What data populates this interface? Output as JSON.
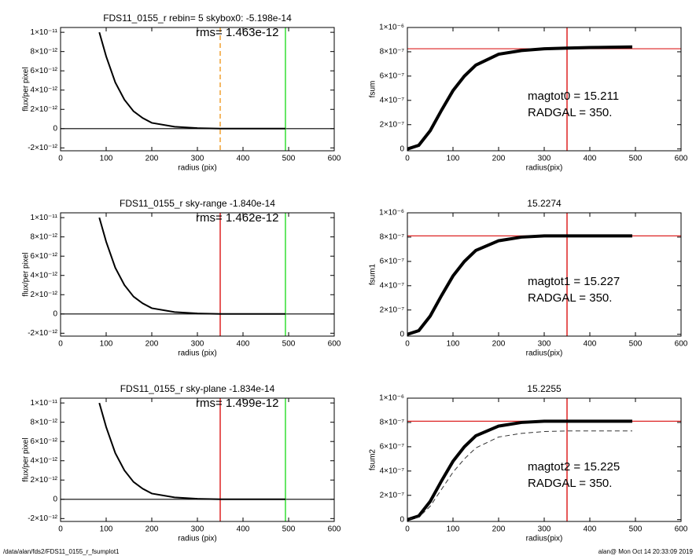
{
  "chart_data": [
    {
      "type": "line",
      "title": "FDS11_0155_r rebin= 5    skybox0: -5.198e-14",
      "annotations": [
        "rms= 1.463e-12"
      ],
      "xlabel": "radius (pix)",
      "ylabel": "flux/per pixel",
      "xlim": [
        0,
        600
      ],
      "ylim": [
        -2.3e-12,
        1.05e-11
      ],
      "xticks": [
        0,
        100,
        200,
        300,
        400,
        500,
        600
      ],
      "yticks": [
        {
          "value": -2e-12,
          "label": "-2×10⁻¹²"
        },
        0,
        {
          "value": 2e-12,
          "label": "2×10⁻¹²"
        },
        {
          "value": 4e-12,
          "label": "4×10⁻¹²"
        },
        {
          "value": 6e-12,
          "label": "6×10⁻¹²"
        },
        {
          "value": 8e-12,
          "label": "8×10⁻¹²"
        },
        {
          "value": 1e-11,
          "label": "1×10⁻¹¹"
        }
      ],
      "hlines": [
        {
          "value": 0,
          "color": "#000000"
        }
      ],
      "vlines": [
        {
          "value": 350,
          "color": "#f0a030",
          "dash": true
        },
        {
          "value": 493,
          "color": "#33dd33",
          "dash": false
        }
      ],
      "series": [
        {
          "color": "#000000",
          "x": [
            85,
            100,
            120,
            140,
            160,
            180,
            200,
            250,
            300,
            350,
            400,
            493
          ],
          "values": [
            1e-11,
            7.5e-12,
            4.8e-12,
            3e-12,
            1.8e-12,
            1.1e-12,
            6e-13,
            2e-13,
            5e-14,
            0,
            0,
            0
          ],
          "dash": false
        }
      ]
    },
    {
      "type": "line",
      "title": "",
      "annotations": [
        "magtot0 =  15.211",
        "RADGAL =    350."
      ],
      "xlabel": "radius(pix)",
      "ylabel": "fsum",
      "xlim": [
        0,
        600
      ],
      "ylim": [
        -1.5e-08,
        1e-06
      ],
      "xticks": [
        0,
        100,
        200,
        300,
        400,
        500,
        600
      ],
      "yticks": [
        0,
        {
          "value": 2e-07,
          "label": "2×10⁻⁷"
        },
        {
          "value": 4e-07,
          "label": "4×10⁻⁷"
        },
        {
          "value": 6e-07,
          "label": "6×10⁻⁷"
        },
        {
          "value": 8e-07,
          "label": "8×10⁻⁷"
        },
        {
          "value": 1e-06,
          "label": "1×10⁻⁶"
        }
      ],
      "hlines": [
        {
          "value": 8.25e-07,
          "color": "#dd2222"
        }
      ],
      "vlines": [
        {
          "value": 350,
          "color": "#dd2222",
          "dash": false
        }
      ],
      "series": [
        {
          "color": "#000000",
          "x": [
            0,
            25,
            50,
            75,
            100,
            125,
            150,
            200,
            250,
            300,
            350,
            400,
            493
          ],
          "values": [
            0,
            3e-08,
            1.5e-07,
            3.2e-07,
            4.8e-07,
            6e-07,
            6.9e-07,
            7.8e-07,
            8.1e-07,
            8.25e-07,
            8.3e-07,
            8.35e-07,
            8.4e-07
          ],
          "dash": false
        }
      ]
    },
    {
      "type": "line",
      "title": "FDS11_0155_r sky-range -1.840e-14",
      "annotations": [
        "rms= 1.462e-12"
      ],
      "xlabel": "radius (pix)",
      "ylabel": "flux/per pixel",
      "xlim": [
        0,
        600
      ],
      "ylim": [
        -2.3e-12,
        1.05e-11
      ],
      "xticks": [
        0,
        100,
        200,
        300,
        400,
        500,
        600
      ],
      "yticks": [
        {
          "value": -2e-12,
          "label": "-2×10⁻¹²"
        },
        0,
        {
          "value": 2e-12,
          "label": "2×10⁻¹²"
        },
        {
          "value": 4e-12,
          "label": "4×10⁻¹²"
        },
        {
          "value": 6e-12,
          "label": "6×10⁻¹²"
        },
        {
          "value": 8e-12,
          "label": "8×10⁻¹²"
        },
        {
          "value": 1e-11,
          "label": "1×10⁻¹¹"
        }
      ],
      "hlines": [
        {
          "value": 0,
          "color": "#000000"
        }
      ],
      "vlines": [
        {
          "value": 350,
          "color": "#dd2222",
          "dash": false
        },
        {
          "value": 493,
          "color": "#33dd33",
          "dash": false
        }
      ],
      "series": [
        {
          "color": "#000000",
          "x": [
            85,
            100,
            120,
            140,
            160,
            180,
            200,
            250,
            300,
            350,
            400,
            493
          ],
          "values": [
            1e-11,
            7.5e-12,
            4.8e-12,
            3e-12,
            1.8e-12,
            1.1e-12,
            6e-13,
            2e-13,
            5e-14,
            0,
            0,
            0
          ],
          "dash": false
        }
      ]
    },
    {
      "type": "line",
      "title": "15.2274",
      "annotations": [
        "magtot1 =  15.227",
        "RADGAL =    350."
      ],
      "xlabel": "radius(pix)",
      "ylabel": "fsum1",
      "xlim": [
        0,
        600
      ],
      "ylim": [
        -1.5e-08,
        1e-06
      ],
      "xticks": [
        0,
        100,
        200,
        300,
        400,
        500,
        600
      ],
      "yticks": [
        0,
        {
          "value": 2e-07,
          "label": "2×10⁻⁷"
        },
        {
          "value": 4e-07,
          "label": "4×10⁻⁷"
        },
        {
          "value": 6e-07,
          "label": "6×10⁻⁷"
        },
        {
          "value": 8e-07,
          "label": "8×10⁻⁷"
        },
        {
          "value": 1e-06,
          "label": "1×10⁻⁶"
        }
      ],
      "hlines": [
        {
          "value": 8.1e-07,
          "color": "#dd2222"
        }
      ],
      "vlines": [
        {
          "value": 350,
          "color": "#dd2222",
          "dash": false
        }
      ],
      "series": [
        {
          "color": "#000000",
          "x": [
            0,
            25,
            50,
            75,
            100,
            125,
            150,
            200,
            250,
            300,
            350,
            400,
            493
          ],
          "values": [
            0,
            3e-08,
            1.5e-07,
            3.2e-07,
            4.8e-07,
            6e-07,
            6.9e-07,
            7.7e-07,
            8e-07,
            8.1e-07,
            8.1e-07,
            8.1e-07,
            8.1e-07
          ],
          "dash": false
        }
      ]
    },
    {
      "type": "line",
      "title": "FDS11_0155_r sky-plane -1.834e-14",
      "annotations": [
        "rms= 1.499e-12"
      ],
      "xlabel": "radius (pix)",
      "ylabel": "flux/per pixel",
      "xlim": [
        0,
        600
      ],
      "ylim": [
        -2.3e-12,
        1.05e-11
      ],
      "xticks": [
        0,
        100,
        200,
        300,
        400,
        500,
        600
      ],
      "yticks": [
        {
          "value": -2e-12,
          "label": "-2×10⁻¹²"
        },
        0,
        {
          "value": 2e-12,
          "label": "2×10⁻¹²"
        },
        {
          "value": 4e-12,
          "label": "4×10⁻¹²"
        },
        {
          "value": 6e-12,
          "label": "6×10⁻¹²"
        },
        {
          "value": 8e-12,
          "label": "8×10⁻¹²"
        },
        {
          "value": 1e-11,
          "label": "1×10⁻¹¹"
        }
      ],
      "hlines": [
        {
          "value": 0,
          "color": "#000000"
        }
      ],
      "vlines": [
        {
          "value": 350,
          "color": "#dd2222",
          "dash": false
        },
        {
          "value": 493,
          "color": "#33dd33",
          "dash": false
        }
      ],
      "series": [
        {
          "color": "#000000",
          "x": [
            85,
            100,
            120,
            140,
            160,
            180,
            200,
            250,
            300,
            350,
            400,
            493
          ],
          "values": [
            1e-11,
            7.5e-12,
            4.8e-12,
            3e-12,
            1.8e-12,
            1.1e-12,
            6e-13,
            2e-13,
            5e-14,
            0,
            0,
            0
          ],
          "dash": false
        }
      ]
    },
    {
      "type": "line",
      "title": "15.2255",
      "annotations": [
        "magtot2 =  15.225",
        "RADGAL =    350."
      ],
      "xlabel": "radius(pix)",
      "ylabel": "fsum2",
      "xlim": [
        0,
        600
      ],
      "ylim": [
        -1.5e-08,
        1e-06
      ],
      "xticks": [
        0,
        100,
        200,
        300,
        400,
        500,
        600
      ],
      "yticks": [
        0,
        {
          "value": 2e-07,
          "label": "2×10⁻⁷"
        },
        {
          "value": 4e-07,
          "label": "4×10⁻⁷"
        },
        {
          "value": 6e-07,
          "label": "6×10⁻⁷"
        },
        {
          "value": 8e-07,
          "label": "8×10⁻⁷"
        },
        {
          "value": 1e-06,
          "label": "1×10⁻⁶"
        }
      ],
      "hlines": [
        {
          "value": 8.1e-07,
          "color": "#dd2222"
        }
      ],
      "vlines": [
        {
          "value": 350,
          "color": "#dd2222",
          "dash": false
        }
      ],
      "series": [
        {
          "color": "#000000",
          "x": [
            0,
            25,
            50,
            75,
            100,
            125,
            150,
            200,
            250,
            300,
            350,
            400,
            493
          ],
          "values": [
            0,
            3e-08,
            1.5e-07,
            3.2e-07,
            4.8e-07,
            6e-07,
            6.9e-07,
            7.7e-07,
            8e-07,
            8.1e-07,
            8.1e-07,
            8.1e-07,
            8.1e-07
          ],
          "dash": false
        },
        {
          "color": "#333333",
          "x": [
            0,
            25,
            50,
            75,
            100,
            125,
            150,
            200,
            250,
            300,
            350,
            400,
            493
          ],
          "values": [
            0,
            2e-08,
            1.1e-07,
            2.5e-07,
            3.9e-07,
            5e-07,
            5.9e-07,
            6.8e-07,
            7.1e-07,
            7.25e-07,
            7.3e-07,
            7.3e-07,
            7.3e-07
          ],
          "dash": true
        }
      ]
    }
  ],
  "footer": {
    "path": "/data/alan/fds2/FDS11_0155_r_fsumplot1",
    "stamp": "alan@  Mon Oct 14 20:33:09 2019"
  }
}
